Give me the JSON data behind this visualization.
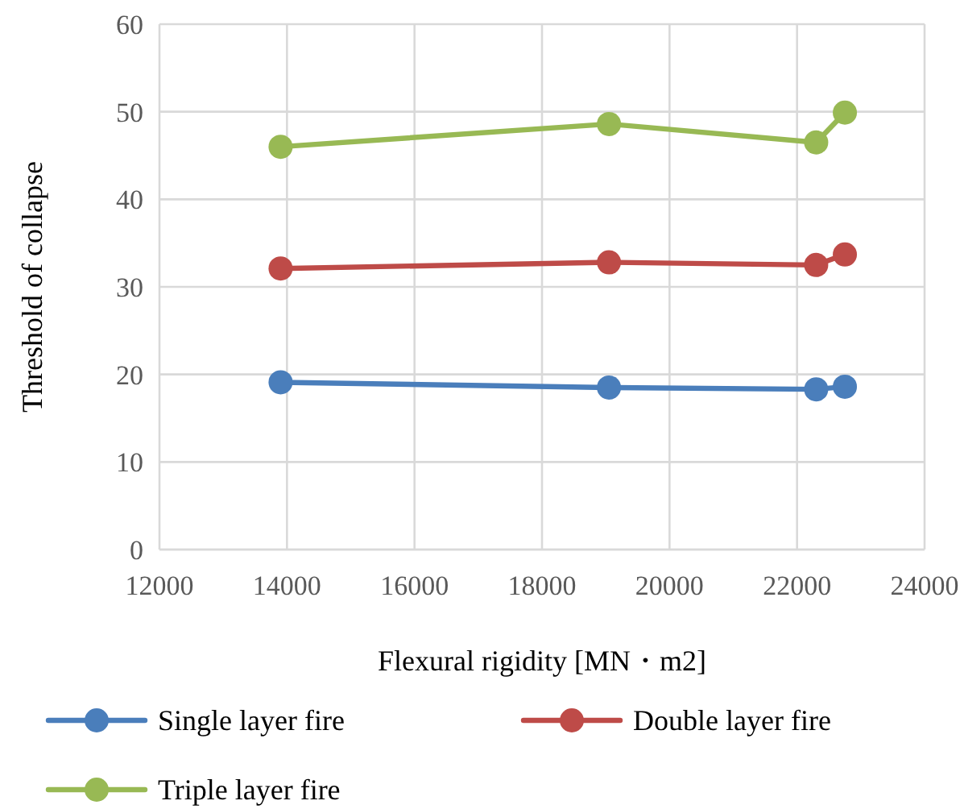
{
  "chart_data": {
    "type": "line",
    "xlabel": "Flexural rigidity  [MN・m2]",
    "ylabel": "Threshold of collapse",
    "x": [
      13900,
      19050,
      22300,
      22750
    ],
    "series": [
      {
        "name": "Single layer fire",
        "color": "#4a7ebb",
        "values": [
          19.1,
          18.5,
          18.3,
          18.6
        ]
      },
      {
        "name": "Double layer fire",
        "color": "#be4b48",
        "values": [
          32.1,
          32.8,
          32.5,
          33.7
        ]
      },
      {
        "name": "Triple layer fire",
        "color": "#98b954",
        "values": [
          46.0,
          48.6,
          46.5,
          49.9
        ]
      }
    ],
    "xlim": [
      12000,
      24000
    ],
    "xticks": [
      12000,
      14000,
      16000,
      18000,
      20000,
      22000,
      24000
    ],
    "ylim": [
      0,
      60
    ],
    "yticks": [
      0,
      10,
      20,
      30,
      40,
      50,
      60
    ],
    "grid": true,
    "legend": "bottom",
    "marker": "circle",
    "line_style": "solid"
  }
}
